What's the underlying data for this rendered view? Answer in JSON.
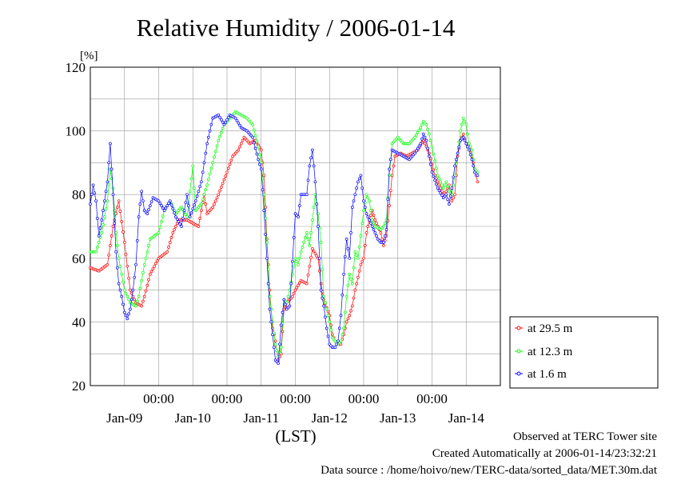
{
  "chart_data": {
    "type": "line",
    "title": "Relative Humidity / 2006-01-14",
    "y_unit": "[%]",
    "xlabel": "(LST)",
    "ylim": [
      20,
      120
    ],
    "yticks": [
      20,
      40,
      60,
      80,
      100,
      120
    ],
    "x_range_hours": [
      0,
      144
    ],
    "x_time_ticks": [
      {
        "label": "00:00",
        "hour": 24
      },
      {
        "label": "00:00",
        "hour": 48
      },
      {
        "label": "00:00",
        "hour": 72
      },
      {
        "label": "00:00",
        "hour": 96
      },
      {
        "label": "00:00",
        "hour": 120
      }
    ],
    "x_date_labels": [
      {
        "label": "Jan-09",
        "hour": 12
      },
      {
        "label": "Jan-10",
        "hour": 36
      },
      {
        "label": "Jan-11",
        "hour": 60
      },
      {
        "label": "Jan-12",
        "hour": 84
      },
      {
        "label": "Jan-13",
        "hour": 108
      },
      {
        "label": "Jan-14",
        "hour": 132
      }
    ],
    "grid": true,
    "legend_position": "right-bottom",
    "series": [
      {
        "name": "at 29.5 m",
        "color": "#ff0000",
        "points": [
          [
            0,
            57
          ],
          [
            3,
            56
          ],
          [
            6,
            58
          ],
          [
            8,
            70
          ],
          [
            10,
            78
          ],
          [
            12,
            65
          ],
          [
            14,
            50
          ],
          [
            16,
            46
          ],
          [
            18,
            45
          ],
          [
            19,
            48
          ],
          [
            21,
            55
          ],
          [
            24,
            60
          ],
          [
            27,
            62
          ],
          [
            29,
            68
          ],
          [
            31,
            72
          ],
          [
            34,
            72
          ],
          [
            36,
            71
          ],
          [
            38,
            70
          ],
          [
            40,
            80
          ],
          [
            41,
            74
          ],
          [
            43,
            76
          ],
          [
            45,
            80
          ],
          [
            48,
            87
          ],
          [
            50,
            92
          ],
          [
            52,
            94
          ],
          [
            54,
            98
          ],
          [
            56,
            96
          ],
          [
            58,
            97
          ],
          [
            60,
            94
          ],
          [
            61,
            86
          ],
          [
            62,
            66
          ],
          [
            63,
            50
          ],
          [
            64,
            38
          ],
          [
            65,
            34
          ],
          [
            66,
            28
          ],
          [
            67,
            30
          ],
          [
            68,
            44
          ],
          [
            69,
            46
          ],
          [
            71,
            48
          ],
          [
            72,
            50
          ],
          [
            74,
            53
          ],
          [
            76,
            52
          ],
          [
            78,
            63
          ],
          [
            80,
            60
          ],
          [
            81,
            52
          ],
          [
            82,
            47
          ],
          [
            84,
            42
          ],
          [
            85,
            36
          ],
          [
            86,
            34
          ],
          [
            87,
            33
          ],
          [
            88,
            33
          ],
          [
            89,
            36
          ],
          [
            90,
            40
          ],
          [
            91,
            42
          ],
          [
            92,
            45
          ],
          [
            93,
            50
          ],
          [
            94,
            54
          ],
          [
            95,
            58
          ],
          [
            96,
            60
          ],
          [
            97,
            68
          ],
          [
            98,
            72
          ],
          [
            99,
            75
          ],
          [
            100,
            72
          ],
          [
            102,
            68
          ],
          [
            103,
            64
          ],
          [
            104,
            67
          ],
          [
            106,
            86
          ],
          [
            107,
            92
          ],
          [
            109,
            93
          ],
          [
            111,
            92
          ],
          [
            113,
            93
          ],
          [
            115,
            94
          ],
          [
            117,
            97
          ],
          [
            119,
            93
          ],
          [
            121,
            86
          ],
          [
            123,
            82
          ],
          [
            124,
            80
          ],
          [
            125,
            81
          ],
          [
            126,
            83
          ],
          [
            127,
            78
          ],
          [
            128,
            80
          ],
          [
            129,
            92
          ],
          [
            130,
            97
          ],
          [
            131,
            99
          ],
          [
            132,
            96
          ],
          [
            133,
            96
          ],
          [
            134,
            92
          ],
          [
            135,
            88
          ],
          [
            136,
            84
          ]
        ]
      },
      {
        "name": "at 12.3 m",
        "color": "#00ff00",
        "points": [
          [
            0,
            62
          ],
          [
            2,
            62
          ],
          [
            4,
            68
          ],
          [
            6,
            78
          ],
          [
            7,
            88
          ],
          [
            8,
            82
          ],
          [
            9,
            68
          ],
          [
            10,
            60
          ],
          [
            12,
            50
          ],
          [
            14,
            46
          ],
          [
            16,
            45
          ],
          [
            17,
            48
          ],
          [
            19,
            58
          ],
          [
            21,
            66
          ],
          [
            24,
            68
          ],
          [
            26,
            75
          ],
          [
            28,
            78
          ],
          [
            30,
            74
          ],
          [
            32,
            76
          ],
          [
            34,
            73
          ],
          [
            36,
            89
          ],
          [
            37,
            75
          ],
          [
            39,
            77
          ],
          [
            41,
            83
          ],
          [
            43,
            90
          ],
          [
            45,
            97
          ],
          [
            47,
            102
          ],
          [
            49,
            104
          ],
          [
            51,
            106
          ],
          [
            53,
            105
          ],
          [
            55,
            104
          ],
          [
            57,
            102
          ],
          [
            59,
            95
          ],
          [
            60,
            90
          ],
          [
            61,
            80
          ],
          [
            62,
            65
          ],
          [
            63,
            48
          ],
          [
            64,
            40
          ],
          [
            65,
            33
          ],
          [
            66,
            29
          ],
          [
            67,
            32
          ],
          [
            68,
            47
          ],
          [
            69,
            46
          ],
          [
            70,
            50
          ],
          [
            71,
            55
          ],
          [
            72,
            60
          ],
          [
            73,
            58
          ],
          [
            74,
            62
          ],
          [
            76,
            68
          ],
          [
            77,
            64
          ],
          [
            79,
            80
          ],
          [
            80,
            74
          ],
          [
            81,
            65
          ],
          [
            82,
            48
          ],
          [
            84,
            40
          ],
          [
            85,
            35
          ],
          [
            86,
            34
          ],
          [
            87,
            33
          ],
          [
            88,
            34
          ],
          [
            89,
            38
          ],
          [
            90,
            48
          ],
          [
            91,
            55
          ],
          [
            92,
            52
          ],
          [
            93,
            62
          ],
          [
            94,
            60
          ],
          [
            95,
            67
          ],
          [
            96,
            75
          ],
          [
            97,
            80
          ],
          [
            98,
            78
          ],
          [
            99,
            72
          ],
          [
            100,
            70
          ],
          [
            102,
            69
          ],
          [
            103,
            70
          ],
          [
            104,
            72
          ],
          [
            105,
            86
          ],
          [
            106,
            96
          ],
          [
            108,
            98
          ],
          [
            110,
            96
          ],
          [
            112,
            96
          ],
          [
            114,
            98
          ],
          [
            116,
            101
          ],
          [
            117,
            103
          ],
          [
            118,
            102
          ],
          [
            119,
            99
          ],
          [
            120,
            95
          ],
          [
            122,
            86
          ],
          [
            124,
            82
          ],
          [
            125,
            84
          ],
          [
            126,
            81
          ],
          [
            127,
            80
          ],
          [
            128,
            86
          ],
          [
            130,
            100
          ],
          [
            131,
            104
          ],
          [
            132,
            102
          ],
          [
            133,
            96
          ],
          [
            134,
            94
          ],
          [
            135,
            88
          ],
          [
            136,
            87
          ]
        ]
      },
      {
        "name": "at 1.6 m",
        "color": "#0000ff",
        "points": [
          [
            0,
            77
          ],
          [
            1,
            83
          ],
          [
            2,
            78
          ],
          [
            3,
            67
          ],
          [
            4,
            72
          ],
          [
            6,
            84
          ],
          [
            7,
            96
          ],
          [
            8,
            80
          ],
          [
            9,
            62
          ],
          [
            10,
            52
          ],
          [
            11,
            48
          ],
          [
            12,
            43
          ],
          [
            13,
            41
          ],
          [
            14,
            44
          ],
          [
            15,
            50
          ],
          [
            16,
            58
          ],
          [
            17,
            73
          ],
          [
            18,
            81
          ],
          [
            19,
            75
          ],
          [
            20,
            74
          ],
          [
            22,
            79
          ],
          [
            24,
            78
          ],
          [
            26,
            75
          ],
          [
            28,
            78
          ],
          [
            30,
            73
          ],
          [
            32,
            70
          ],
          [
            34,
            80
          ],
          [
            35,
            73
          ],
          [
            37,
            78
          ],
          [
            39,
            84
          ],
          [
            41,
            96
          ],
          [
            43,
            104
          ],
          [
            45,
            105
          ],
          [
            47,
            102
          ],
          [
            49,
            105
          ],
          [
            51,
            104
          ],
          [
            53,
            101
          ],
          [
            55,
            100
          ],
          [
            57,
            98
          ],
          [
            59,
            91
          ],
          [
            60,
            88
          ],
          [
            61,
            75
          ],
          [
            62,
            60
          ],
          [
            63,
            44
          ],
          [
            64,
            36
          ],
          [
            65,
            28
          ],
          [
            66,
            27
          ],
          [
            67,
            39
          ],
          [
            68,
            47
          ],
          [
            69,
            44
          ],
          [
            70,
            45
          ],
          [
            71,
            59
          ],
          [
            72,
            74
          ],
          [
            73,
            73
          ],
          [
            74,
            80
          ],
          [
            76,
            80
          ],
          [
            77,
            89
          ],
          [
            78,
            94
          ],
          [
            79,
            84
          ],
          [
            80,
            70
          ],
          [
            81,
            50
          ],
          [
            82,
            45
          ],
          [
            83,
            38
          ],
          [
            84,
            33
          ],
          [
            85,
            32
          ],
          [
            86,
            32
          ],
          [
            87,
            34
          ],
          [
            88,
            42
          ],
          [
            89,
            55
          ],
          [
            90,
            66
          ],
          [
            91,
            60
          ],
          [
            92,
            76
          ],
          [
            93,
            80
          ],
          [
            94,
            84
          ],
          [
            95,
            86
          ],
          [
            96,
            78
          ],
          [
            97,
            74
          ],
          [
            98,
            72
          ],
          [
            99,
            70
          ],
          [
            100,
            68
          ],
          [
            101,
            66
          ],
          [
            102,
            65
          ],
          [
            103,
            65
          ],
          [
            104,
            69
          ],
          [
            105,
            88
          ],
          [
            106,
            94
          ],
          [
            108,
            93
          ],
          [
            110,
            92
          ],
          [
            112,
            91
          ],
          [
            114,
            93
          ],
          [
            116,
            96
          ],
          [
            117,
            99
          ],
          [
            118,
            97
          ],
          [
            119,
            92
          ],
          [
            120,
            87
          ],
          [
            122,
            82
          ],
          [
            124,
            79
          ],
          [
            125,
            80
          ],
          [
            126,
            77
          ],
          [
            127,
            82
          ],
          [
            128,
            89
          ],
          [
            129,
            93
          ],
          [
            130,
            97
          ],
          [
            131,
            98
          ],
          [
            132,
            96
          ],
          [
            133,
            94
          ],
          [
            134,
            91
          ],
          [
            135,
            87
          ],
          [
            136,
            86
          ]
        ]
      }
    ],
    "footer_lines": [
      "Observed at TERC Tower site",
      "Created Automatically at 2006-01-14/23:32:21",
      "Data source : /home/hoivo/new/TERC-data/sorted_data/MET.30m.dat"
    ]
  }
}
